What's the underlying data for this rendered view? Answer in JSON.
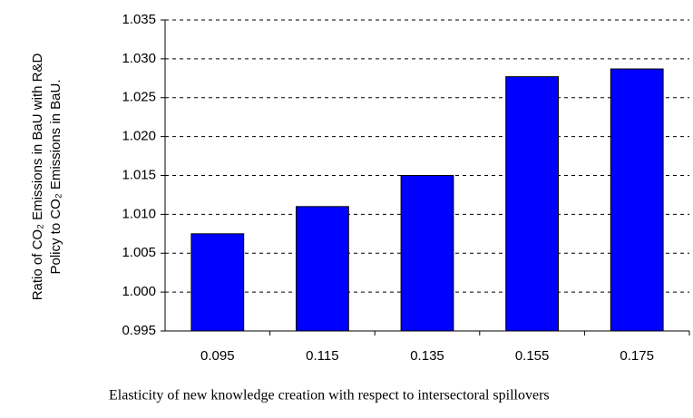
{
  "chart_data": {
    "type": "bar",
    "ylabel": [
      "Ratio of CO₂ Emissions in BaU with R&D",
      "Policy to CO₂ Emissions in BaU."
    ],
    "xlabel": "Elasticity of new knowledge creation with respect to intersectoral spillovers",
    "categories": [
      "0.095",
      "0.115",
      "0.135",
      "0.155",
      "0.175"
    ],
    "values": [
      1.0075,
      1.011,
      1.015,
      1.0277,
      1.0287
    ],
    "color": "#0000ff",
    "ylim": [
      0.995,
      1.035
    ],
    "yticks": [
      0.995,
      {
        "value": 1,
        "label": "1.000"
      },
      1.005,
      {
        "value": 1.01,
        "label": "1.010"
      },
      1.015,
      {
        "value": 1.02,
        "label": "1.020"
      },
      1.025,
      {
        "value": 1.03,
        "label": "1.030"
      },
      1.035
    ],
    "grid": true
  }
}
